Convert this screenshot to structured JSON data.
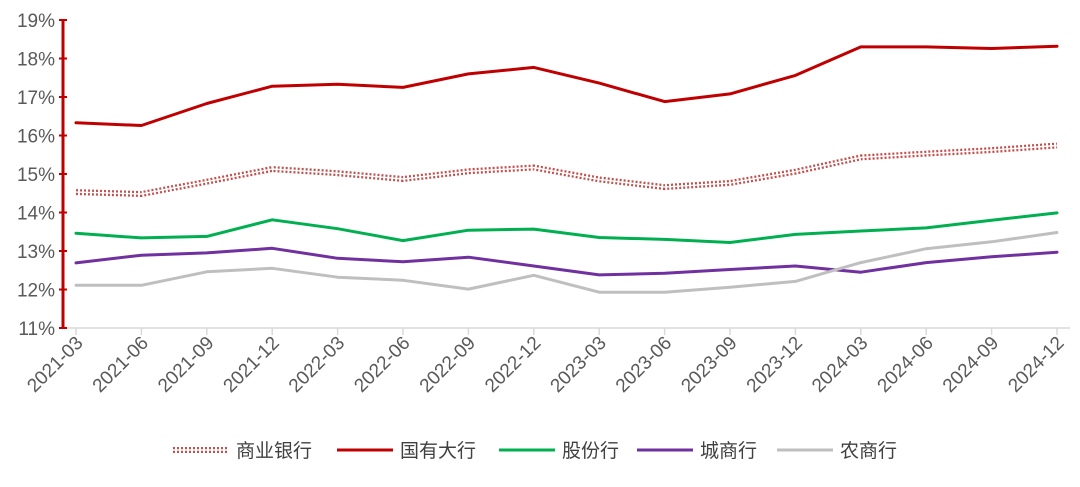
{
  "chart_data": {
    "type": "line",
    "title": "",
    "xlabel": "",
    "ylabel": "",
    "ylim": [
      11,
      19
    ],
    "y_tick_values": [
      11,
      12,
      13,
      14,
      15,
      16,
      17,
      18,
      19
    ],
    "y_tick_labels": [
      "11%",
      "12%",
      "13%",
      "14%",
      "15%",
      "16%",
      "17%",
      "18%",
      "19%"
    ],
    "categories": [
      "2021-03",
      "2021-06",
      "2021-09",
      "2021-12",
      "2022-03",
      "2022-06",
      "2022-09",
      "2022-12",
      "2023-03",
      "2023-06",
      "2023-09",
      "2023-12",
      "2024-03",
      "2024-06",
      "2024-09",
      "2024-12"
    ],
    "grid": false,
    "legend_position": "bottom",
    "series": [
      {
        "name": "商业银行",
        "color": "#c0504d",
        "style": "dotted",
        "values": [
          14.53,
          14.48,
          14.8,
          15.13,
          15.02,
          14.87,
          15.07,
          15.17,
          14.86,
          14.66,
          14.77,
          15.06,
          15.43,
          15.53,
          15.62,
          15.74
        ]
      },
      {
        "name": "国有大行",
        "color": "#c00000",
        "style": "solid",
        "values": [
          16.33,
          16.26,
          16.83,
          17.28,
          17.33,
          17.25,
          17.6,
          17.77,
          17.36,
          16.88,
          17.08,
          17.56,
          18.3,
          18.3,
          18.26,
          18.32
        ]
      },
      {
        "name": "股份行",
        "color": "#00b050",
        "style": "solid",
        "values": [
          13.46,
          13.34,
          13.38,
          13.81,
          13.58,
          13.27,
          13.54,
          13.57,
          13.35,
          13.3,
          13.22,
          13.43,
          13.52,
          13.6,
          13.8,
          13.99
        ]
      },
      {
        "name": "城商行",
        "color": "#7030a0",
        "style": "solid",
        "values": [
          12.69,
          12.89,
          12.95,
          13.07,
          12.81,
          12.72,
          12.84,
          12.61,
          12.38,
          12.42,
          12.52,
          12.61,
          12.45,
          12.7,
          12.85,
          12.97
        ]
      },
      {
        "name": "农商行",
        "color": "#bfbfbf",
        "style": "solid",
        "values": [
          12.11,
          12.11,
          12.46,
          12.55,
          12.32,
          12.24,
          12.01,
          12.37,
          11.93,
          11.93,
          12.06,
          12.21,
          12.7,
          13.06,
          13.24,
          13.48
        ]
      }
    ]
  }
}
